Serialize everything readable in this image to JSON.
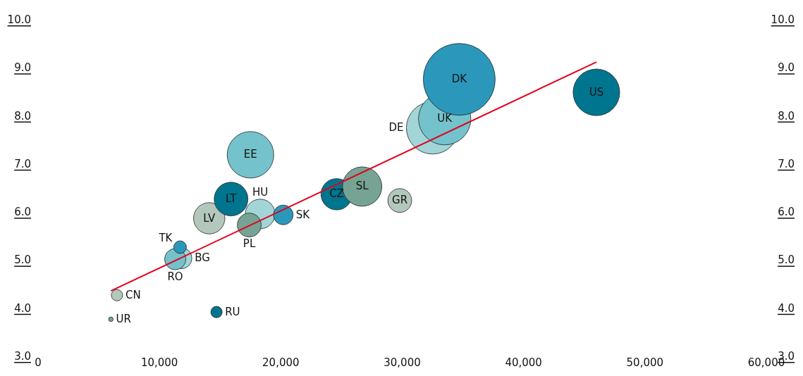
{
  "chart_data": {
    "type": "bubble",
    "xlim": [
      0,
      60000
    ],
    "ylim": [
      3,
      10
    ],
    "y2lim": [
      3,
      10
    ],
    "xticks": [
      0,
      {
        "value": 10000,
        "label": "10,000"
      },
      {
        "value": 20000,
        "label": "20,000"
      },
      {
        "value": 30000,
        "label": "30,000"
      },
      {
        "value": 40000,
        "label": "40,000"
      },
      {
        "value": 50000,
        "label": "50,000"
      },
      {
        "value": 60000,
        "label": "60,000"
      }
    ],
    "yticks": [
      {
        "value": 3,
        "label": "3.0"
      },
      {
        "value": 4,
        "label": "4.0"
      },
      {
        "value": 5,
        "label": "5.0"
      },
      {
        "value": 6,
        "label": "6.0"
      },
      {
        "value": 7,
        "label": "7.0"
      },
      {
        "value": 8,
        "label": "8.0"
      },
      {
        "value": 9,
        "label": "9.0"
      },
      {
        "value": 10,
        "label": "10.0"
      }
    ],
    "y2ticks": [
      {
        "value": 3,
        "label": "3.0"
      },
      {
        "value": 4,
        "label": "4.0"
      },
      {
        "value": 5,
        "label": "5.0"
      },
      {
        "value": 6,
        "label": "6.0"
      },
      {
        "value": 7,
        "label": "7.0"
      },
      {
        "value": 8,
        "label": "8.0"
      },
      {
        "value": 9,
        "label": "9.0"
      },
      {
        "value": 10,
        "label": "10.0"
      }
    ],
    "series": [
      {
        "name": "UR",
        "color": "#76a393",
        "x": [
          6000
        ],
        "values": [
          3.77
        ],
        "sizes": [
          0.004
        ]
      },
      {
        "name": "CN",
        "color": "#b3c7bd",
        "x": [
          6500
        ],
        "values": [
          4.27
        ],
        "sizes": [
          0.025
        ]
      },
      {
        "name": "RU",
        "color": "#00758f",
        "x": [
          14700
        ],
        "values": [
          3.92
        ],
        "sizes": [
          0.025
        ]
      },
      {
        "name": "BG",
        "color": "#a2d5d8",
        "x": [
          11800
        ],
        "values": [
          5.04
        ],
        "sizes": [
          0.087
        ]
      },
      {
        "name": "RO",
        "color": "#74c2cb",
        "x": [
          11300
        ],
        "values": [
          5.02
        ],
        "sizes": [
          0.087
        ]
      },
      {
        "name": "TK",
        "color": "#2b98bb",
        "x": [
          11700
        ],
        "values": [
          5.27
        ],
        "sizes": [
          0.031
        ]
      },
      {
        "name": "LV",
        "color": "#b3c7bd",
        "x": [
          14100
        ],
        "values": [
          5.87
        ],
        "sizes": [
          0.19
        ]
      },
      {
        "name": "LT",
        "color": "#00758f",
        "x": [
          15900
        ],
        "values": [
          6.27
        ],
        "sizes": [
          0.22
        ]
      },
      {
        "name": "HU",
        "color": "#a2d5d8",
        "x": [
          18300
        ],
        "values": [
          5.96
        ],
        "sizes": [
          0.17
        ]
      },
      {
        "name": "PL",
        "color": "#76a393",
        "x": [
          17400
        ],
        "values": [
          5.73
        ],
        "sizes": [
          0.11
        ]
      },
      {
        "name": "SK",
        "color": "#2b98bb",
        "x": [
          20200
        ],
        "values": [
          5.94
        ],
        "sizes": [
          0.075
        ]
      },
      {
        "name": "EE",
        "color": "#74c2cb",
        "x": [
          17500
        ],
        "values": [
          7.19
        ],
        "sizes": [
          0.42
        ]
      },
      {
        "name": "CZ",
        "color": "#00758f",
        "x": [
          24600
        ],
        "values": [
          6.37
        ],
        "sizes": [
          0.19
        ]
      },
      {
        "name": "SL",
        "color": "#76a393",
        "x": [
          26700
        ],
        "values": [
          6.53
        ],
        "sizes": [
          0.3
        ]
      },
      {
        "name": "GR",
        "color": "#b3c7bd",
        "x": [
          29800
        ],
        "values": [
          6.24
        ],
        "sizes": [
          0.11
        ]
      },
      {
        "name": "DE",
        "color": "#a2d5d8",
        "x": [
          32500
        ],
        "values": [
          7.75
        ],
        "sizes": [
          0.53
        ]
      },
      {
        "name": "UK",
        "color": "#74c2cb",
        "x": [
          33500
        ],
        "values": [
          7.94
        ],
        "sizes": [
          0.53
        ]
      },
      {
        "name": "DK",
        "color": "#2b98bb",
        "x": [
          34700
        ],
        "values": [
          8.76
        ],
        "sizes": [
          1
        ]
      },
      {
        "name": "US",
        "color": "#00758f",
        "x": [
          46000
        ],
        "values": [
          8.49
        ],
        "sizes": [
          0.42
        ]
      },
      {
        "type": "line",
        "color": "#e3001b",
        "x": [
          6000,
          46000
        ],
        "values": [
          4.36,
          9.12
        ]
      }
    ]
  }
}
